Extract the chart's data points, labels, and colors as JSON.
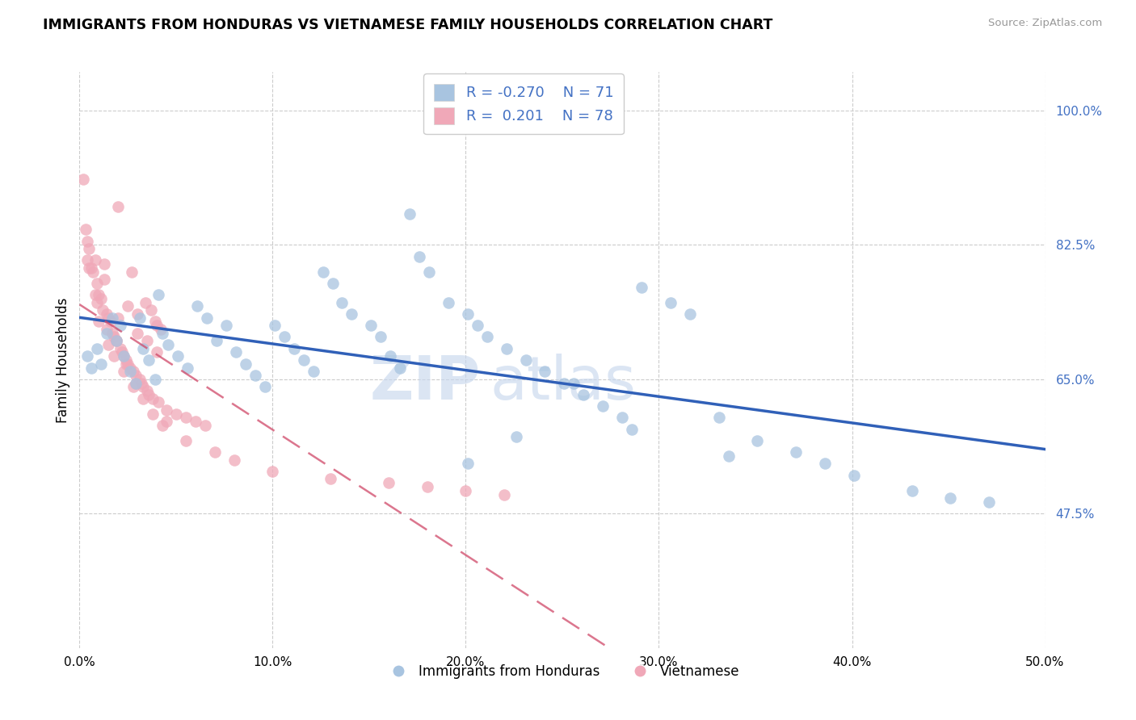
{
  "title": "IMMIGRANTS FROM HONDURAS VS VIETNAMESE FAMILY HOUSEHOLDS CORRELATION CHART",
  "source": "Source: ZipAtlas.com",
  "ylabel": "Family Households",
  "color_blue": "#a8c4e0",
  "color_pink": "#f0a8b8",
  "line_color_blue": "#3060b8",
  "line_color_pink": "#d04868",
  "watermark_zip": "ZIP",
  "watermark_atlas": "atlas",
  "xlim": [
    0.0,
    50.0
  ],
  "ylim": [
    30.0,
    105.0
  ],
  "yticks": [
    47.5,
    65.0,
    82.5,
    100.0
  ],
  "ytick_labels": [
    "47.5%",
    "65.0%",
    "82.5%",
    "100.0%"
  ],
  "xtick_vals": [
    0,
    10,
    20,
    30,
    40,
    50
  ],
  "xtick_labels": [
    "0.0%",
    "10.0%",
    "20.0%",
    "30.0%",
    "40.0%",
    "50.0%"
  ],
  "R_blue": -0.27,
  "N_blue": 71,
  "R_pink": 0.201,
  "N_pink": 78,
  "blue_x": [
    0.4,
    0.6,
    0.9,
    1.1,
    1.4,
    1.7,
    1.9,
    2.1,
    2.3,
    2.6,
    2.9,
    3.1,
    3.3,
    3.6,
    3.9,
    4.1,
    4.3,
    4.6,
    5.1,
    5.6,
    6.1,
    6.6,
    7.1,
    7.6,
    8.1,
    8.6,
    9.1,
    9.6,
    10.1,
    10.6,
    11.1,
    11.6,
    12.1,
    12.6,
    13.1,
    13.6,
    14.1,
    15.1,
    15.6,
    16.1,
    16.6,
    17.1,
    18.1,
    19.1,
    20.1,
    21.1,
    22.1,
    23.1,
    24.1,
    25.1,
    26.1,
    27.1,
    28.1,
    29.1,
    17.6,
    20.6,
    30.6,
    31.6,
    33.1,
    35.1,
    37.1,
    40.1,
    43.1,
    45.1,
    47.1,
    20.1,
    25.6,
    28.6,
    33.6,
    38.6,
    22.6
  ],
  "blue_y": [
    68.0,
    66.5,
    69.0,
    67.0,
    71.0,
    73.0,
    70.0,
    72.0,
    68.0,
    66.0,
    64.5,
    73.0,
    69.0,
    67.5,
    65.0,
    76.0,
    71.0,
    69.5,
    68.0,
    66.5,
    74.5,
    73.0,
    70.0,
    72.0,
    68.5,
    67.0,
    65.5,
    64.0,
    72.0,
    70.5,
    69.0,
    67.5,
    66.0,
    79.0,
    77.5,
    75.0,
    73.5,
    72.0,
    70.5,
    68.0,
    66.5,
    86.5,
    79.0,
    75.0,
    73.5,
    70.5,
    69.0,
    67.5,
    66.0,
    64.5,
    63.0,
    61.5,
    60.0,
    77.0,
    81.0,
    72.0,
    75.0,
    73.5,
    60.0,
    57.0,
    55.5,
    52.5,
    50.5,
    49.5,
    49.0,
    54.0,
    64.5,
    58.5,
    55.0,
    54.0,
    57.5
  ],
  "pink_x": [
    0.2,
    0.3,
    0.4,
    0.5,
    0.6,
    0.7,
    0.8,
    0.9,
    1.0,
    1.1,
    1.2,
    1.3,
    1.4,
    1.5,
    1.6,
    1.7,
    1.8,
    1.9,
    2.0,
    2.1,
    2.2,
    2.3,
    2.4,
    2.5,
    2.6,
    2.7,
    2.8,
    2.9,
    3.0,
    3.1,
    3.2,
    3.3,
    3.4,
    3.5,
    3.6,
    3.7,
    3.8,
    3.9,
    4.0,
    4.1,
    4.2,
    4.5,
    5.0,
    5.5,
    6.0,
    6.5,
    1.3,
    2.0,
    3.5,
    4.0,
    0.8,
    1.5,
    2.5,
    3.0,
    0.5,
    1.0,
    1.8,
    2.3,
    2.8,
    3.3,
    3.8,
    4.3,
    5.5,
    7.0,
    8.0,
    10.0,
    13.0,
    16.0,
    18.0,
    20.0,
    22.0,
    0.4,
    0.9,
    1.4,
    1.9,
    2.4,
    2.9,
    4.5
  ],
  "pink_y": [
    91.0,
    84.5,
    83.0,
    82.0,
    79.5,
    79.0,
    80.5,
    77.5,
    76.0,
    75.5,
    74.0,
    80.0,
    73.5,
    73.0,
    72.5,
    71.0,
    70.5,
    70.0,
    87.5,
    69.0,
    68.5,
    68.0,
    67.5,
    67.0,
    66.5,
    79.0,
    66.0,
    65.5,
    73.5,
    65.0,
    64.5,
    64.0,
    75.0,
    63.5,
    63.0,
    74.0,
    62.5,
    72.5,
    72.0,
    62.0,
    71.5,
    61.0,
    60.5,
    60.0,
    59.5,
    59.0,
    78.0,
    73.0,
    70.0,
    68.5,
    76.0,
    69.5,
    74.5,
    71.0,
    79.5,
    72.5,
    68.0,
    66.0,
    64.0,
    62.5,
    60.5,
    59.0,
    57.0,
    55.5,
    54.5,
    53.0,
    52.0,
    51.5,
    51.0,
    50.5,
    50.0,
    80.5,
    75.0,
    71.5,
    70.0,
    67.0,
    64.5,
    59.5
  ]
}
